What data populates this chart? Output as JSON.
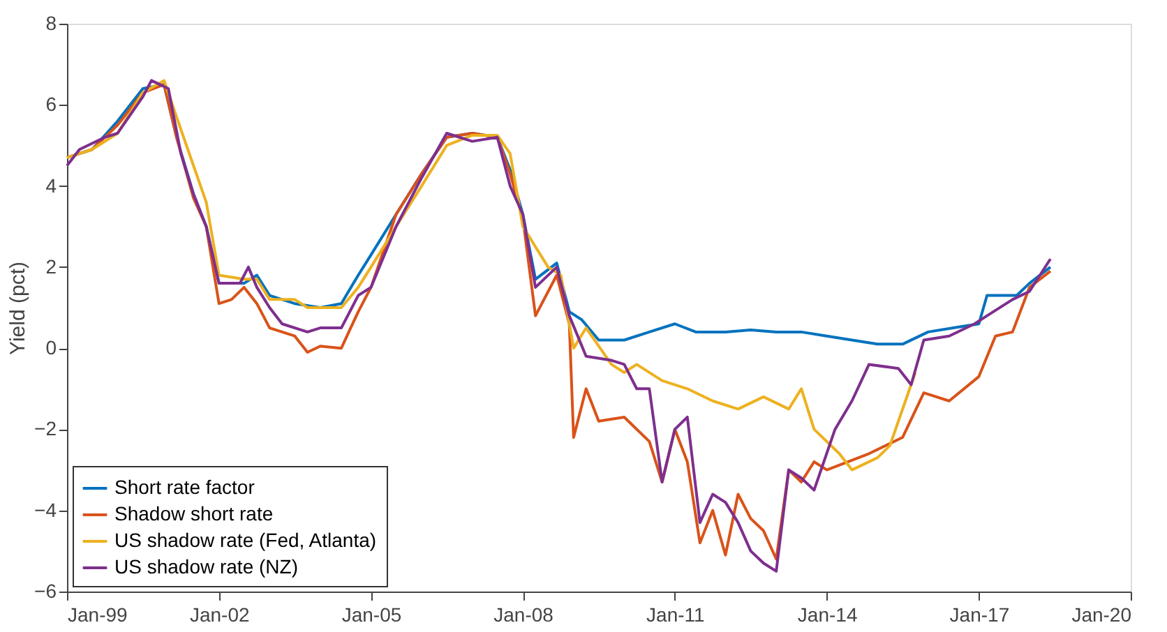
{
  "chart_data": {
    "type": "line",
    "ylabel": "Yield (pct)",
    "xlim": [
      "1999-01",
      "2020-01"
    ],
    "ylim": [
      -6,
      8
    ],
    "yticks": [
      -6,
      -4,
      -2,
      0,
      2,
      4,
      6,
      8
    ],
    "xticks": [
      {
        "value": "1999-01",
        "label": "Jan-99"
      },
      {
        "value": "2002-01",
        "label": "Jan-02"
      },
      {
        "value": "2005-01",
        "label": "Jan-05"
      },
      {
        "value": "2008-01",
        "label": "Jan-08"
      },
      {
        "value": "2011-01",
        "label": "Jan-11"
      },
      {
        "value": "2014-01",
        "label": "Jan-14"
      },
      {
        "value": "2017-01",
        "label": "Jan-17"
      },
      {
        "value": "2020-01",
        "label": "Jan-20"
      }
    ],
    "grid": false,
    "legend": "bottom left",
    "marker": "none",
    "line_style": "solid",
    "series": [
      {
        "name": "Short rate factor",
        "color": "#0072bd",
        "x": [
          "1999-01",
          "1999-07",
          "2000-01",
          "2000-07",
          "2000-12",
          "2001-03",
          "2001-07",
          "2001-10",
          "2002-01",
          "2002-07",
          "2002-10",
          "2003-01",
          "2003-07",
          "2004-01",
          "2004-06",
          "2004-10",
          "2005-01",
          "2005-07",
          "2006-01",
          "2006-07",
          "2007-01",
          "2007-07",
          "2007-10",
          "2008-01",
          "2008-04",
          "2008-09",
          "2008-12",
          "2009-03",
          "2009-07",
          "2010-01",
          "2010-07",
          "2011-01",
          "2011-06",
          "2012-01",
          "2012-07",
          "2013-01",
          "2013-07",
          "2014-01",
          "2014-07",
          "2015-01",
          "2015-07",
          "2016-01",
          "2016-07",
          "2017-01",
          "2017-03",
          "2017-10",
          "2018-01",
          "2018-06"
        ],
        "values": [
          4.7,
          4.9,
          5.6,
          6.4,
          6.5,
          5.2,
          3.8,
          3.0,
          1.6,
          1.6,
          1.8,
          1.3,
          1.1,
          1.0,
          1.1,
          1.8,
          2.3,
          3.3,
          4.3,
          5.2,
          5.3,
          5.2,
          4.4,
          3.3,
          1.7,
          2.1,
          0.9,
          0.7,
          0.2,
          0.2,
          0.4,
          0.6,
          0.4,
          0.4,
          0.45,
          0.4,
          0.4,
          0.3,
          0.2,
          0.1,
          0.1,
          0.4,
          0.5,
          0.6,
          1.3,
          1.3,
          1.6,
          2.0
        ]
      },
      {
        "name": "Shadow short rate",
        "color": "#d95319",
        "x": [
          "1999-01",
          "1999-07",
          "2000-01",
          "2000-07",
          "2000-12",
          "2001-03",
          "2001-07",
          "2001-10",
          "2002-01",
          "2002-04",
          "2002-07",
          "2002-10",
          "2003-01",
          "2003-07",
          "2003-10",
          "2004-01",
          "2004-06",
          "2004-10",
          "2005-01",
          "2005-07",
          "2006-01",
          "2006-07",
          "2007-01",
          "2007-07",
          "2007-10",
          "2008-01",
          "2008-04",
          "2008-09",
          "2008-12",
          "2009-01",
          "2009-04",
          "2009-07",
          "2010-01",
          "2010-07",
          "2010-10",
          "2011-01",
          "2011-04",
          "2011-07",
          "2011-10",
          "2012-01",
          "2012-04",
          "2012-07",
          "2012-10",
          "2013-01",
          "2013-04",
          "2013-07",
          "2013-10",
          "2014-01",
          "2014-11",
          "2015-07",
          "2015-12",
          "2016-06",
          "2017-01",
          "2017-05",
          "2017-09",
          "2018-01",
          "2018-06"
        ],
        "values": [
          4.7,
          4.9,
          5.5,
          6.3,
          6.5,
          5.2,
          3.7,
          3.0,
          1.1,
          1.2,
          1.5,
          1.1,
          0.5,
          0.3,
          -0.1,
          0.05,
          0.0,
          0.9,
          1.5,
          3.3,
          4.3,
          5.2,
          5.3,
          5.2,
          4.3,
          3.2,
          0.8,
          1.8,
          0.6,
          -2.2,
          -1.0,
          -1.8,
          -1.7,
          -2.3,
          -3.3,
          -2.0,
          -2.8,
          -4.8,
          -4.0,
          -5.1,
          -3.6,
          -4.2,
          -4.5,
          -5.2,
          -3.0,
          -3.3,
          -2.8,
          -3.0,
          -2.6,
          -2.2,
          -1.1,
          -1.3,
          -0.7,
          0.3,
          0.4,
          1.5,
          1.9
        ]
      },
      {
        "name": "US shadow rate (Fed, Atlanta)",
        "color": "#edb120",
        "x": [
          "1999-01",
          "1999-07",
          "2000-01",
          "2000-07",
          "2000-12",
          "2001-03",
          "2001-07",
          "2001-10",
          "2002-01",
          "2002-07",
          "2002-10",
          "2003-01",
          "2003-07",
          "2003-10",
          "2004-06",
          "2004-10",
          "2005-01",
          "2005-07",
          "2006-01",
          "2006-07",
          "2007-01",
          "2007-07",
          "2007-10",
          "2008-01",
          "2008-07",
          "2008-10",
          "2009-01",
          "2009-04",
          "2009-10",
          "2010-01",
          "2010-04",
          "2010-10",
          "2011-04",
          "2011-10",
          "2012-04",
          "2012-10",
          "2013-04",
          "2013-07",
          "2013-10",
          "2014-04",
          "2014-07",
          "2015-01",
          "2015-04",
          "2015-10"
        ],
        "values": [
          4.7,
          4.9,
          5.3,
          6.3,
          6.6,
          5.7,
          4.5,
          3.6,
          1.8,
          1.7,
          1.7,
          1.2,
          1.2,
          1.0,
          1.0,
          1.5,
          2.0,
          3.0,
          4.0,
          5.0,
          5.25,
          5.25,
          4.8,
          3.0,
          2.0,
          1.8,
          0.0,
          0.5,
          -0.4,
          -0.6,
          -0.4,
          -0.8,
          -1.0,
          -1.3,
          -1.5,
          -1.2,
          -1.5,
          -1.0,
          -2.0,
          -2.6,
          -3.0,
          -2.7,
          -2.4,
          -0.6
        ]
      },
      {
        "name": "US shadow rate (NZ)",
        "color": "#7e2f8e",
        "x": [
          "1999-01",
          "1999-04",
          "1999-10",
          "2000-01",
          "2000-07",
          "2000-09",
          "2001-01",
          "2001-04",
          "2001-07",
          "2001-10",
          "2002-01",
          "2002-06",
          "2002-08",
          "2002-10",
          "2003-01",
          "2003-04",
          "2003-10",
          "2004-01",
          "2004-06",
          "2004-10",
          "2005-01",
          "2005-07",
          "2006-01",
          "2006-07",
          "2007-01",
          "2007-07",
          "2007-10",
          "2008-01",
          "2008-04",
          "2008-09",
          "2008-12",
          "2009-04",
          "2009-10",
          "2010-01",
          "2010-04",
          "2010-07",
          "2010-10",
          "2011-01",
          "2011-04",
          "2011-07",
          "2011-10",
          "2012-01",
          "2012-04",
          "2012-07",
          "2012-10",
          "2013-01",
          "2013-04",
          "2013-07",
          "2013-10",
          "2014-03",
          "2014-07",
          "2014-11",
          "2015-06",
          "2015-09",
          "2015-12",
          "2016-06",
          "2016-12",
          "2017-03",
          "2017-09",
          "2018-01",
          "2018-06"
        ],
        "values": [
          4.5,
          4.9,
          5.2,
          5.3,
          6.2,
          6.6,
          6.4,
          4.8,
          3.8,
          3.0,
          1.6,
          1.6,
          2.0,
          1.5,
          1.0,
          0.6,
          0.4,
          0.5,
          0.5,
          1.3,
          1.5,
          3.0,
          4.2,
          5.3,
          5.1,
          5.2,
          4.0,
          3.3,
          1.5,
          2.0,
          0.8,
          -0.2,
          -0.3,
          -0.4,
          -1.0,
          -1.0,
          -3.3,
          -2.0,
          -1.7,
          -4.3,
          -3.6,
          -3.8,
          -4.3,
          -5.0,
          -5.3,
          -5.5,
          -3.0,
          -3.2,
          -3.5,
          -2.0,
          -1.3,
          -0.4,
          -0.5,
          -0.9,
          0.2,
          0.3,
          0.6,
          0.8,
          1.2,
          1.4,
          2.2
        ]
      }
    ]
  }
}
